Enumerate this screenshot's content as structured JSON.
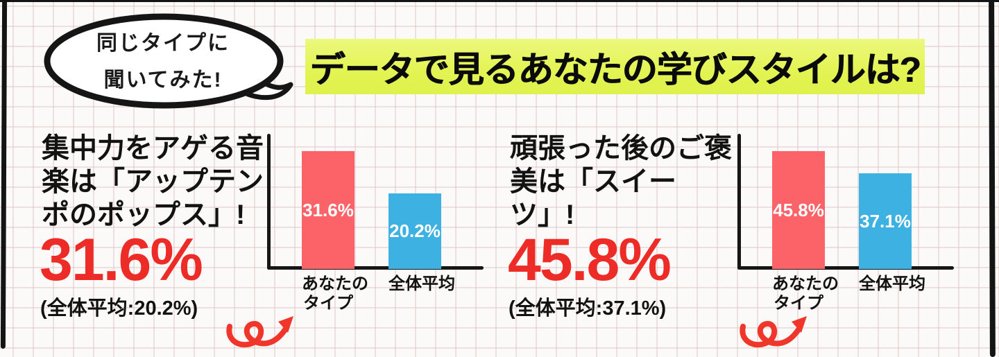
{
  "page": {
    "background_color": "#FBFAF8",
    "grid_line_color": "#E9DCDA",
    "frame_color": "#141414"
  },
  "speech_bubble": {
    "line1": "同じタイプに",
    "line2": "聞いてみた!"
  },
  "title": {
    "text": "データで見るあなたの学びスタイルは?",
    "highlight_color": "#E3F454"
  },
  "sections": [
    {
      "heading_line1": "集中力をアゲる音",
      "heading_line2": "楽は「アップテン",
      "heading_line3": "ポのポップス」!",
      "big_value": "31.6%",
      "average_note": "(全体平均:20.2%)"
    },
    {
      "heading_line1": "頑張った後のご褒",
      "heading_line2": "美は「スイー",
      "heading_line3": "ツ」!",
      "big_value": "45.8%",
      "average_note": "(全体平均:37.1%)"
    }
  ],
  "chart_data": [
    {
      "type": "bar",
      "categories": [
        "あなたのタイプ",
        "全体平均"
      ],
      "values": [
        31.6,
        20.2
      ],
      "value_labels": [
        "31.6%",
        "20.2%"
      ],
      "tick_lines": [
        [
          "あなたの",
          "タイプ"
        ],
        [
          "全体平均"
        ]
      ],
      "bar_colors": [
        "#FB6369",
        "#3EB1E3"
      ],
      "title": "集中力をアゲる音楽は「アップテンポのポップス」!",
      "xlabel": "",
      "ylabel": "",
      "ylim": [
        0,
        36
      ],
      "grid": false,
      "legend": "none"
    },
    {
      "type": "bar",
      "categories": [
        "あなたのタイプ",
        "全体平均"
      ],
      "values": [
        45.8,
        37.1
      ],
      "value_labels": [
        "45.8%",
        "37.1%"
      ],
      "tick_lines": [
        [
          "あなたの",
          "タイプ"
        ],
        [
          "全体平均"
        ]
      ],
      "bar_colors": [
        "#FB6369",
        "#3EB1E3"
      ],
      "title": "頑張った後のご褒美は「スイーツ」!",
      "xlabel": "",
      "ylabel": "",
      "ylim": [
        0,
        52
      ],
      "grid": false,
      "legend": "none"
    }
  ],
  "colors": {
    "accent_red": "#ED2C28",
    "bar_red": "#FB6369",
    "bar_blue": "#3EB1E3",
    "highlight_yellow": "#E3F454"
  }
}
